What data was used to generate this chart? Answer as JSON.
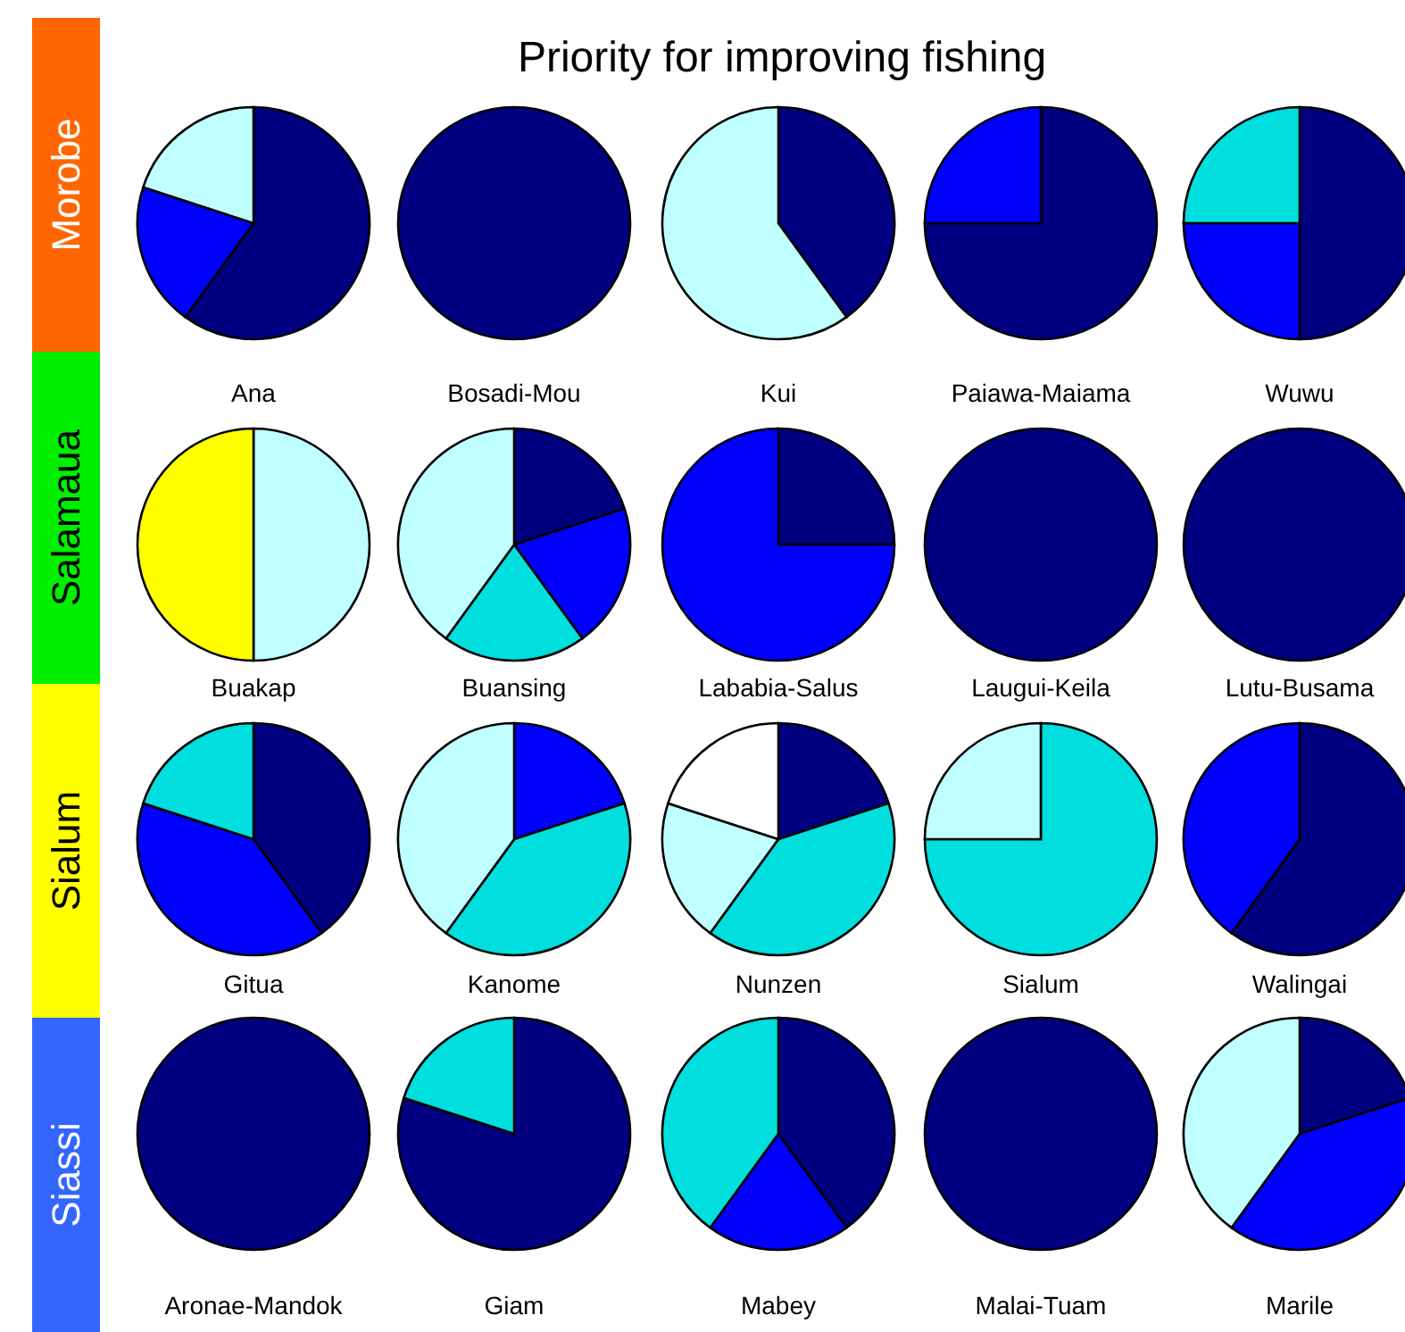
{
  "chart_data": [
    {
      "type": "other",
      "title": "Priority for improving fishing",
      "annotations": [
        "Morobe",
        "Salamaua",
        "Sialum",
        "Siassi"
      ]
    },
    {
      "type": "pie",
      "title": "Ana",
      "categories": [
        null,
        null,
        null
      ],
      "values": [
        60,
        20,
        20
      ],
      "colors": [
        "#000080",
        "#0000ff",
        "#bfffff"
      ]
    },
    {
      "type": "pie",
      "title": "Bosadi-Mou",
      "categories": [
        null
      ],
      "values": [
        100
      ],
      "colors": [
        "#000080"
      ]
    },
    {
      "type": "pie",
      "title": "Kui",
      "categories": [
        null,
        null
      ],
      "values": [
        40,
        60
      ],
      "colors": [
        "#000080",
        "#bfffff"
      ]
    },
    {
      "type": "pie",
      "title": "Paiawa-Maiama",
      "categories": [
        null,
        null
      ],
      "values": [
        75,
        25
      ],
      "colors": [
        "#000080",
        "#0000ff"
      ]
    },
    {
      "type": "pie",
      "title": "Wuwu",
      "categories": [
        null,
        null,
        null
      ],
      "values": [
        50,
        25,
        25
      ],
      "colors": [
        "#000080",
        "#0000ff",
        "#00dede"
      ]
    },
    {
      "type": "pie",
      "title": "Buakap",
      "categories": [
        null,
        null
      ],
      "values": [
        50,
        50
      ],
      "colors": [
        "#bfffff",
        "#ffff00"
      ]
    },
    {
      "type": "pie",
      "title": "Buansing",
      "categories": [
        null,
        null,
        null,
        null
      ],
      "values": [
        20,
        20,
        20,
        40
      ],
      "colors": [
        "#000080",
        "#0000ff",
        "#00dede",
        "#bfffff"
      ]
    },
    {
      "type": "pie",
      "title": "Lababia-Salus",
      "categories": [
        null,
        null
      ],
      "values": [
        25,
        75
      ],
      "colors": [
        "#000080",
        "#0000ff"
      ]
    },
    {
      "type": "pie",
      "title": "Laugui-Keila",
      "categories": [
        null
      ],
      "values": [
        100
      ],
      "colors": [
        "#000080"
      ]
    },
    {
      "type": "pie",
      "title": "Lutu-Busama",
      "categories": [
        null
      ],
      "values": [
        100
      ],
      "colors": [
        "#000080"
      ]
    },
    {
      "type": "pie",
      "title": "Gitua",
      "categories": [
        null,
        null,
        null
      ],
      "values": [
        40,
        40,
        20
      ],
      "colors": [
        "#000080",
        "#0000ff",
        "#00dede"
      ]
    },
    {
      "type": "pie",
      "title": "Kanome",
      "categories": [
        null,
        null,
        null
      ],
      "values": [
        20,
        40,
        40
      ],
      "colors": [
        "#0000ff",
        "#00dede",
        "#bfffff"
      ]
    },
    {
      "type": "pie",
      "title": "Nunzen",
      "categories": [
        null,
        null,
        null,
        null
      ],
      "values": [
        20,
        40,
        20,
        20
      ],
      "colors": [
        "#000080",
        "#00dede",
        "#bfffff",
        "#ffffff"
      ]
    },
    {
      "type": "pie",
      "title": "Sialum",
      "categories": [
        null,
        null
      ],
      "values": [
        75,
        25
      ],
      "colors": [
        "#00dede",
        "#bfffff"
      ]
    },
    {
      "type": "pie",
      "title": "Walingai",
      "categories": [
        null,
        null
      ],
      "values": [
        60,
        40
      ],
      "colors": [
        "#000080",
        "#0000ff"
      ]
    },
    {
      "type": "pie",
      "title": "Aronae-Mandok",
      "categories": [
        null
      ],
      "values": [
        100
      ],
      "colors": [
        "#000080"
      ]
    },
    {
      "type": "pie",
      "title": "Giam",
      "categories": [
        null,
        null
      ],
      "values": [
        80,
        20
      ],
      "colors": [
        "#000080",
        "#00dede"
      ]
    },
    {
      "type": "pie",
      "title": "Mabey",
      "categories": [
        null,
        null,
        null
      ],
      "values": [
        40,
        20,
        40
      ],
      "colors": [
        "#000080",
        "#0000ff",
        "#00dede"
      ]
    },
    {
      "type": "pie",
      "title": "Malai-Tuam",
      "categories": [
        null
      ],
      "values": [
        100
      ],
      "colors": [
        "#000080"
      ]
    },
    {
      "type": "pie",
      "title": "Marile",
      "categories": [
        null,
        null,
        null
      ],
      "values": [
        20,
        40,
        40
      ],
      "colors": [
        "#000080",
        "#0000ff",
        "#bfffff"
      ]
    }
  ]
}
